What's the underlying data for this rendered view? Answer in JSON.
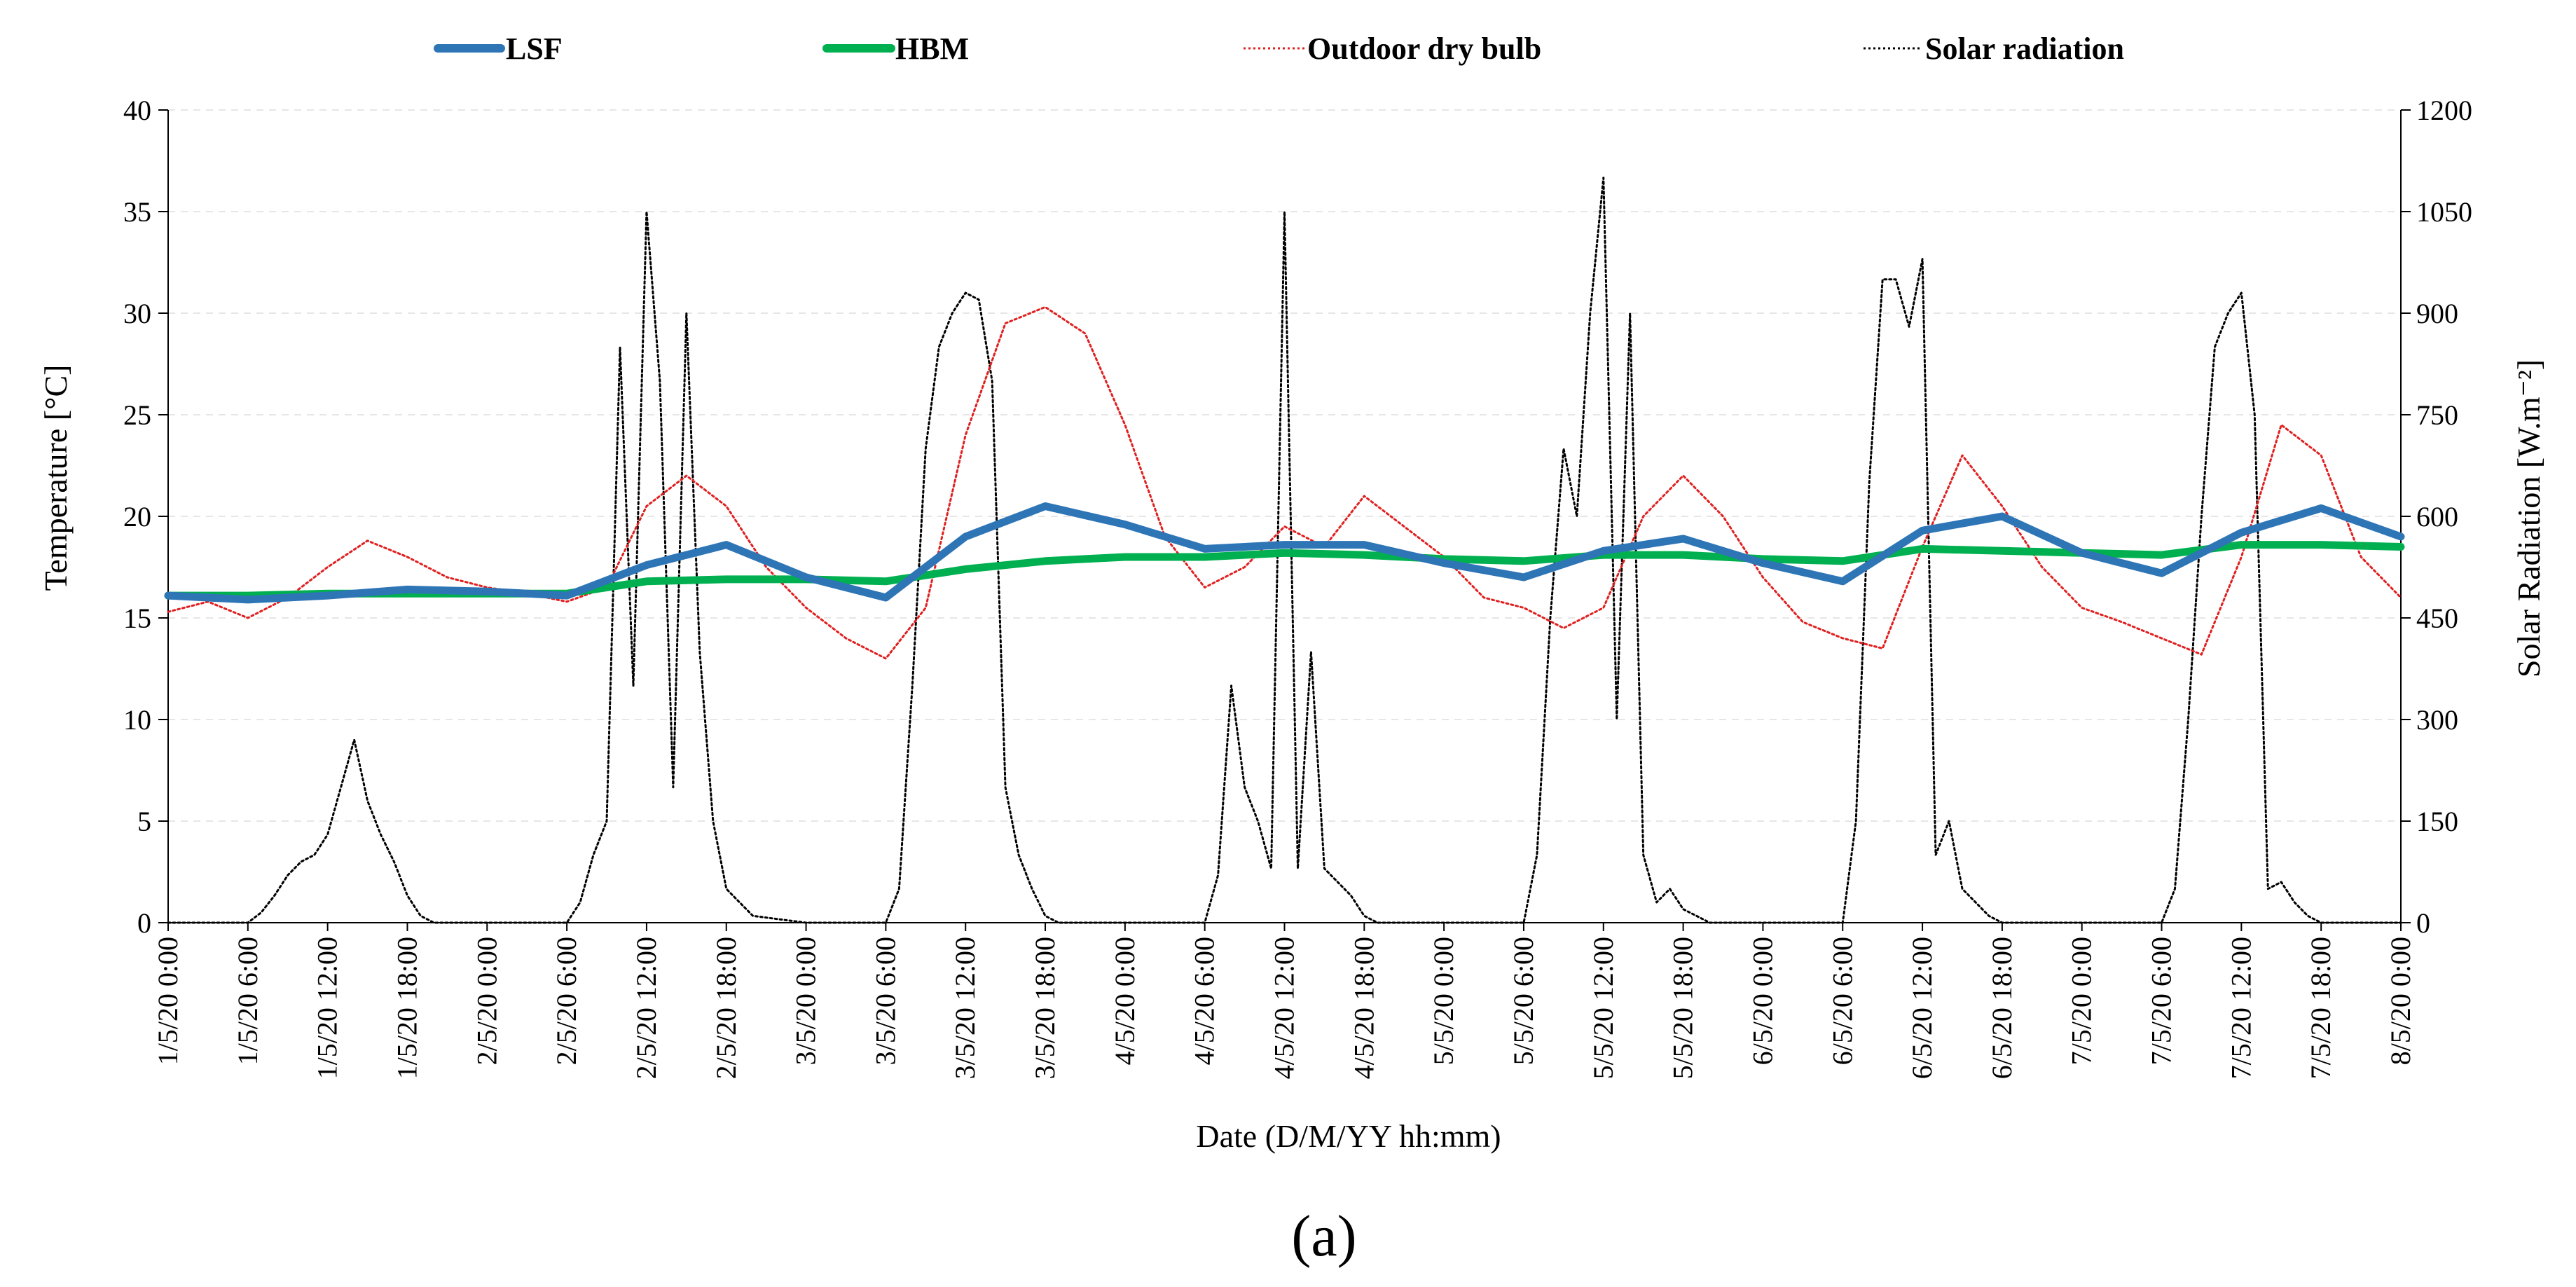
{
  "caption": "(a)",
  "chart_data": {
    "type": "line",
    "title": "",
    "xlabel": "Date (D/M/YY hh:mm)",
    "ylabel": "Temperature [°C]",
    "y2label": "Solar Radiation  [W.m⁻²]",
    "ylim": [
      0,
      40
    ],
    "y2lim": [
      0,
      1200
    ],
    "yticks": [
      "0",
      "5",
      "10",
      "15",
      "20",
      "25",
      "30",
      "35",
      "40"
    ],
    "y2ticks": [
      "0",
      "150",
      "300",
      "450",
      "600",
      "750",
      "900",
      "1050",
      "1200"
    ],
    "xlim_hours": [
      0,
      168
    ],
    "x_ticks": [
      "1/5/20 0:00",
      "1/5/20 6:00",
      "1/5/20 12:00",
      "1/5/20 18:00",
      "2/5/20 0:00",
      "2/5/20 6:00",
      "2/5/20 12:00",
      "2/5/20 18:00",
      "3/5/20 0:00",
      "3/5/20 6:00",
      "3/5/20 12:00",
      "3/5/20 18:00",
      "4/5/20 0:00",
      "4/5/20 6:00",
      "4/5/20 12:00",
      "4/5/20 18:00",
      "5/5/20 0:00",
      "5/5/20 6:00",
      "5/5/20 12:00",
      "5/5/20 18:00",
      "6/5/20 0:00",
      "6/5/20 6:00",
      "6/5/20 12:00",
      "6/5/20 18:00",
      "7/5/20 0:00",
      "7/5/20 6:00",
      "7/5/20 12:00",
      "7/5/20 18:00",
      "8/5/20 0:00"
    ],
    "legend_position": "top",
    "grid": "horizontal",
    "series": [
      {
        "name": "LSF",
        "axis": "left",
        "color": "#2E75B6",
        "style": "solid-thick",
        "x_hours": [
          0,
          6,
          12,
          18,
          24,
          30,
          36,
          42,
          48,
          54,
          60,
          66,
          72,
          78,
          84,
          90,
          96,
          102,
          108,
          114,
          120,
          126,
          132,
          138,
          144,
          150,
          156,
          162,
          168
        ],
        "values": [
          16.1,
          15.9,
          16.1,
          16.4,
          16.3,
          16.1,
          17.6,
          18.6,
          17.0,
          16.0,
          19.0,
          20.5,
          19.6,
          18.4,
          18.6,
          18.6,
          17.7,
          17.0,
          18.3,
          18.9,
          17.7,
          16.8,
          19.3,
          20.0,
          18.2,
          17.2,
          19.2,
          20.4,
          19.0
        ]
      },
      {
        "name": "HBM",
        "axis": "left",
        "color": "#00B050",
        "style": "solid-thick",
        "x_hours": [
          0,
          6,
          12,
          18,
          24,
          30,
          36,
          42,
          48,
          54,
          60,
          66,
          72,
          78,
          84,
          90,
          96,
          102,
          108,
          114,
          120,
          126,
          132,
          138,
          144,
          150,
          156,
          162,
          168
        ],
        "values": [
          16.1,
          16.1,
          16.2,
          16.2,
          16.2,
          16.2,
          16.8,
          16.9,
          16.9,
          16.8,
          17.4,
          17.8,
          18.0,
          18.0,
          18.2,
          18.1,
          17.9,
          17.8,
          18.1,
          18.1,
          17.9,
          17.8,
          18.4,
          18.3,
          18.2,
          18.1,
          18.6,
          18.6,
          18.5
        ]
      },
      {
        "name": "Outdoor dry bulb",
        "axis": "left",
        "color": "#E02020",
        "style": "dotted",
        "x_hours": [
          0,
          3,
          6,
          9,
          12,
          15,
          18,
          21,
          24,
          27,
          30,
          33,
          36,
          39,
          42,
          45,
          48,
          51,
          54,
          57,
          60,
          63,
          66,
          69,
          72,
          75,
          78,
          81,
          84,
          87,
          90,
          93,
          96,
          99,
          102,
          105,
          108,
          111,
          114,
          117,
          120,
          123,
          126,
          129,
          132,
          135,
          138,
          141,
          144,
          147,
          150,
          153,
          156,
          159,
          162,
          165,
          168
        ],
        "values": [
          15.3,
          15.8,
          15.0,
          16.0,
          17.5,
          18.8,
          18.0,
          17.0,
          16.5,
          16.2,
          15.8,
          16.5,
          20.5,
          22.0,
          20.5,
          17.5,
          15.5,
          14.0,
          13.0,
          15.5,
          24.0,
          29.5,
          30.3,
          29.0,
          24.5,
          19.0,
          16.5,
          17.5,
          19.5,
          18.5,
          21.0,
          19.5,
          18.0,
          16.0,
          15.5,
          14.5,
          15.5,
          20.0,
          22.0,
          20.0,
          17.0,
          14.8,
          14.0,
          13.5,
          18.5,
          23.0,
          20.5,
          17.5,
          15.5,
          14.8,
          14.0,
          13.2,
          18.0,
          24.5,
          23.0,
          18.0,
          16.0
        ]
      },
      {
        "name": "Solar radiation",
        "axis": "right",
        "color": "#000000",
        "style": "dotted",
        "x_hours": [
          0,
          6,
          7,
          8,
          9,
          10,
          11,
          12,
          13,
          14,
          15,
          16,
          17,
          18,
          19,
          20,
          24,
          30,
          31,
          32,
          33,
          34,
          35,
          36,
          37,
          38,
          39,
          40,
          41,
          42,
          43,
          44,
          48,
          54,
          55,
          56,
          57,
          58,
          59,
          60,
          61,
          62,
          63,
          64,
          65,
          66,
          67,
          68,
          72,
          78,
          79,
          80,
          81,
          82,
          83,
          84,
          85,
          86,
          87,
          88,
          89,
          90,
          91,
          92,
          96,
          102,
          103,
          104,
          105,
          106,
          107,
          108,
          109,
          110,
          111,
          112,
          113,
          114,
          115,
          116,
          120,
          126,
          127,
          128,
          129,
          130,
          131,
          132,
          133,
          134,
          135,
          136,
          137,
          138,
          139,
          140,
          144,
          150,
          151,
          152,
          153,
          154,
          155,
          156,
          157,
          158,
          159,
          160,
          161,
          162,
          163,
          164,
          168
        ],
        "values": [
          0,
          0,
          15,
          40,
          70,
          90,
          100,
          130,
          200,
          270,
          180,
          130,
          90,
          40,
          10,
          0,
          0,
          0,
          30,
          100,
          150,
          850,
          350,
          1050,
          800,
          200,
          900,
          400,
          150,
          50,
          30,
          10,
          0,
          0,
          50,
          350,
          700,
          850,
          900,
          930,
          920,
          800,
          200,
          100,
          50,
          10,
          0,
          0,
          0,
          0,
          70,
          350,
          200,
          150,
          80,
          1050,
          80,
          400,
          80,
          60,
          40,
          10,
          0,
          0,
          0,
          0,
          100,
          450,
          700,
          600,
          900,
          1100,
          300,
          900,
          100,
          30,
          50,
          20,
          10,
          0,
          0,
          0,
          150,
          650,
          950,
          950,
          880,
          980,
          100,
          150,
          50,
          30,
          10,
          0,
          0,
          0,
          0,
          0,
          50,
          300,
          600,
          850,
          900,
          930,
          750,
          50,
          60,
          30,
          10,
          0,
          0,
          0,
          0
        ]
      }
    ]
  }
}
